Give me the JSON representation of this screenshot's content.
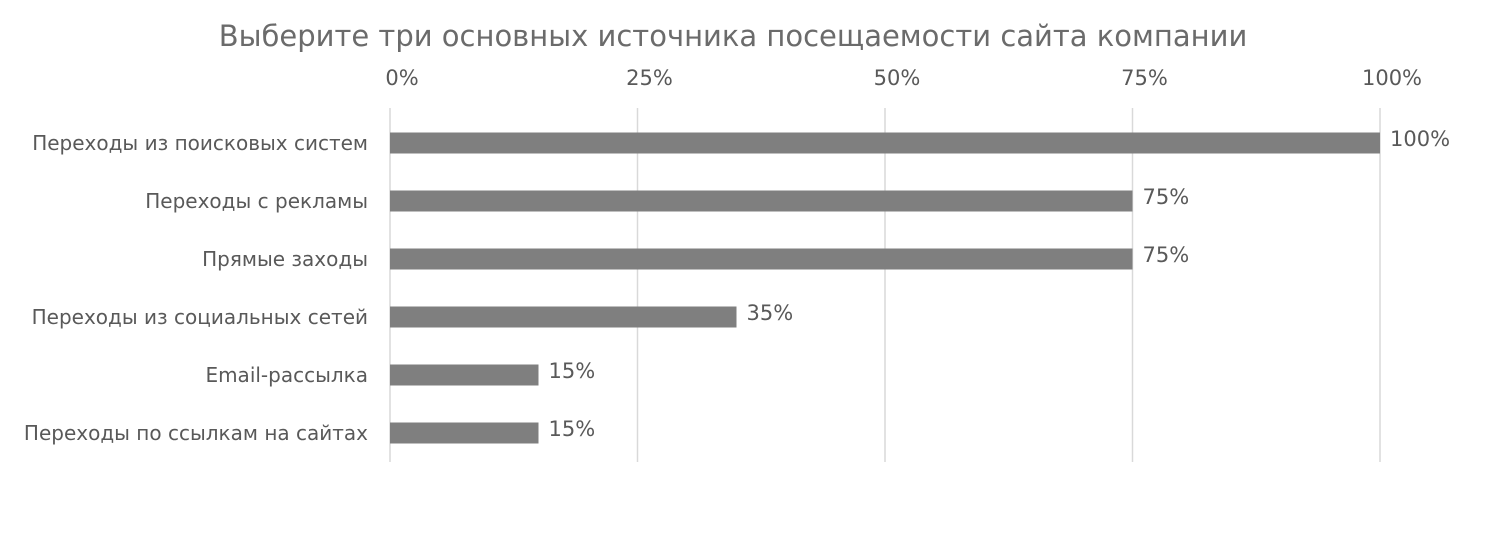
{
  "chart_data": {
    "type": "bar",
    "orientation": "horizontal",
    "title": "Выберите три основных источника посещаемости сайта компании",
    "categories": [
      "Переходы из поисковых систем",
      "Переходы с рекламы",
      "Прямые заходы",
      "Переходы из социальных сетей",
      "Email-рассылка",
      "Переходы по ссылкам на сайтах"
    ],
    "values": [
      100,
      75,
      75,
      35,
      15,
      15
    ],
    "value_labels": [
      "100%",
      "75%",
      "75%",
      "35%",
      "15%",
      "15%"
    ],
    "xlim": [
      0,
      100
    ],
    "x_ticks": [
      0,
      25,
      50,
      75,
      100
    ],
    "x_tick_labels": [
      "0%",
      "25%",
      "50%",
      "75%",
      "100%"
    ],
    "x_axis_position": "top",
    "grid": true,
    "legend": "none",
    "bar_color": "#7f7f7f",
    "grid_color": "#d9d9d9",
    "text_color": "#595959"
  }
}
